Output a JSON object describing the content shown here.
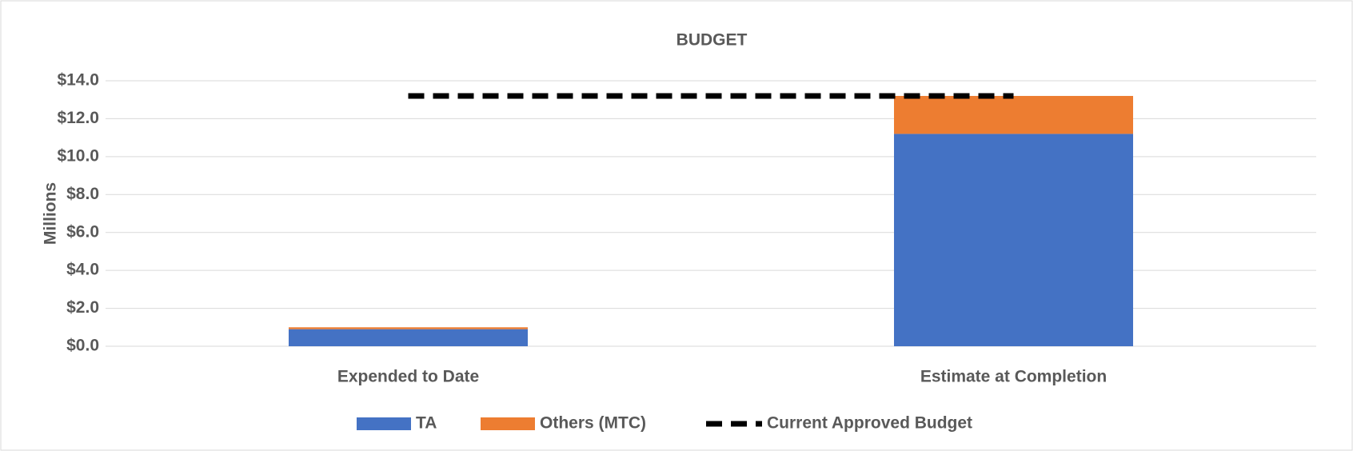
{
  "chart_data": {
    "type": "bar",
    "stacked": true,
    "title": "BUDGET",
    "y_label": "Millions",
    "categories": [
      "Expended to Date",
      "Estimate at Completion"
    ],
    "series": [
      {
        "name": "TA",
        "color": "#4472c4",
        "values": [
          0.9,
          11.2
        ]
      },
      {
        "name": "Others (MTC)",
        "color": "#ed7d31",
        "values": [
          0.1,
          2.0
        ]
      },
      {
        "name": "Current Approved Budget",
        "type": "line",
        "color": "#000000",
        "dashed": true,
        "values": [
          13.2,
          13.2
        ]
      }
    ],
    "ylim": [
      0,
      14
    ],
    "yticks": [
      {
        "value": 0,
        "label": "$0.0"
      },
      {
        "value": 2,
        "label": "$2.0"
      },
      {
        "value": 4,
        "label": "$4.0"
      },
      {
        "value": 6,
        "label": "$6.0"
      },
      {
        "value": 8,
        "label": "$8.0"
      },
      {
        "value": 10,
        "label": "$10.0"
      },
      {
        "value": 12,
        "label": "$12.0"
      },
      {
        "value": 14,
        "label": "$14.0"
      }
    ],
    "grid": true,
    "legend": "bottom"
  }
}
